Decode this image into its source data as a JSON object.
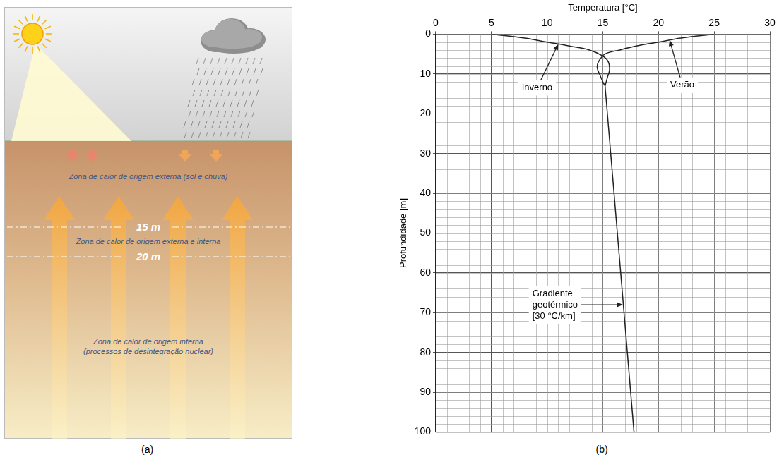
{
  "diagram": {
    "label": "(a)",
    "zones": [
      {
        "lines": [
          "Zona de calor de origem externa (sol e chuva)"
        ]
      },
      {
        "lines": [
          "Zona de calor de origem externa e interna"
        ]
      },
      {
        "lines": [
          "Zona de calor de origem interna",
          "(processos de desintegração nuclear)"
        ]
      }
    ],
    "depth_marks": [
      "15 m",
      "20 m"
    ]
  },
  "chart_data": {
    "label": "(b)",
    "type": "line",
    "x_label": "Temperatura [°C]",
    "y_label": "Profundidade [m]",
    "xlim": [
      0,
      30
    ],
    "xticks": [
      0,
      5,
      10,
      15,
      20,
      25,
      30
    ],
    "ylim": [
      100,
      0
    ],
    "yticks": [
      0,
      10,
      20,
      30,
      40,
      50,
      60,
      70,
      80,
      90,
      100
    ],
    "grid": true,
    "series": [
      {
        "name": "Inverno",
        "color": "#222222",
        "x": [
          5,
          8,
          10,
          12,
          13.8,
          15,
          15.5,
          15.6,
          15.4,
          15.2
        ],
        "values": [
          0,
          1,
          2,
          3,
          4,
          5.5,
          7,
          9,
          11,
          13
        ]
      },
      {
        "name": "Verão",
        "color": "#222222",
        "x": [
          25,
          22,
          20,
          18,
          16.5,
          15.2,
          14.6,
          14.5,
          14.7,
          15.0,
          15.2
        ],
        "values": [
          0,
          1,
          2,
          3,
          4,
          5,
          7,
          8.5,
          10,
          12,
          13
        ]
      },
      {
        "name": "Gradiente geotérmico",
        "color": "#222222",
        "x": [
          15.2,
          17.8
        ],
        "values": [
          13,
          100
        ]
      }
    ],
    "annotations": [
      {
        "lines": [
          "Inverno"
        ],
        "x": 11,
        "y": 2.5
      },
      {
        "lines": [
          "Verão"
        ],
        "x": 21,
        "y": 1.5
      },
      {
        "lines": [
          "Gradiente",
          "geotérmico",
          "[30 °C/km]"
        ],
        "x": 16.8,
        "y": 68
      }
    ]
  }
}
